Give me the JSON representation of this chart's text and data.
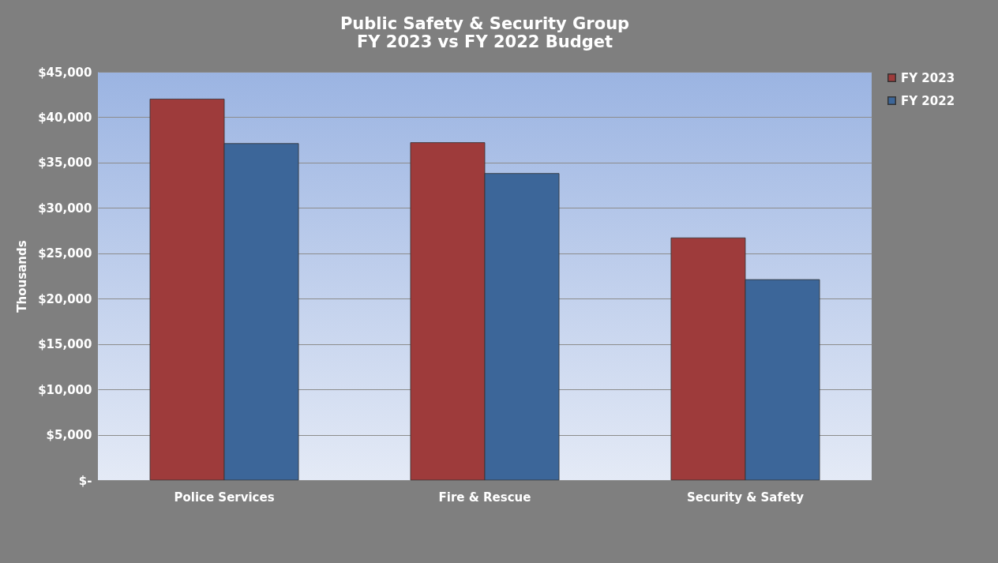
{
  "chart_data": {
    "type": "bar",
    "title": "Public Safety & Security Group\nFY 2023 vs FY 2022 Budget",
    "ylabel": "Thousands",
    "categories": [
      "Police Services",
      "Fire & Rescue",
      "Security & Safety"
    ],
    "series": [
      {
        "name": "FY 2023",
        "color": "#9e3b3b",
        "values": [
          42000,
          37200,
          26700
        ]
      },
      {
        "name": "FY 2022",
        "color": "#3c6699",
        "values": [
          37100,
          33800,
          22100
        ]
      }
    ],
    "ylim": [
      0,
      45000
    ],
    "yticks": [
      {
        "value": 0,
        "label": "$-"
      },
      {
        "value": 5000,
        "label": "$5,000"
      },
      {
        "value": 10000,
        "label": "$10,000"
      },
      {
        "value": 15000,
        "label": "$15,000"
      },
      {
        "value": 20000,
        "label": "$20,000"
      },
      {
        "value": 25000,
        "label": "$25,000"
      },
      {
        "value": 30000,
        "label": "$30,000"
      },
      {
        "value": 35000,
        "label": "$35,000"
      },
      {
        "value": 40000,
        "label": "$40,000"
      },
      {
        "value": 45000,
        "label": "$45,000"
      }
    ],
    "grid": "y",
    "legend": "right"
  }
}
